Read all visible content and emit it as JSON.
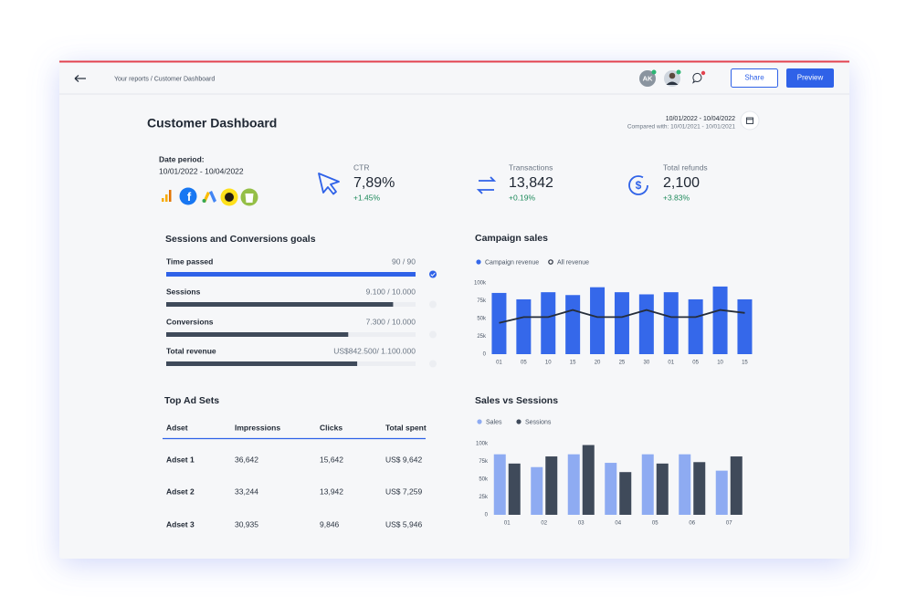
{
  "header": {
    "breadcrumb": "Your reports / Customer Dashboard",
    "avatar_initials": "AK",
    "share_button": "Share",
    "preview_button": "Preview"
  },
  "dashboard": {
    "title": "Customer Dashboard",
    "date_range": "10/01/2022 - 10/04/2022",
    "compared": "Compared with: 10/01/2021 - 10/01/2021"
  },
  "date_period": {
    "label": "Date period:",
    "value": "10/01/2022 - 10/04/2022"
  },
  "kpis": [
    {
      "label": "CTR",
      "value": "7,89%",
      "change": "+1.45%"
    },
    {
      "label": "Transactions",
      "value": "13,842",
      "change": "+0.19%"
    },
    {
      "label": "Total refunds",
      "value": "2,100",
      "change": "+3.83%"
    }
  ],
  "goals": {
    "title": "Sessions and Conversions goals",
    "items": [
      {
        "label": "Time passed",
        "value_label": "90 / 90",
        "value": 90,
        "target": 90
      },
      {
        "label": "Sessions",
        "value_label": "9.100 / 10.000",
        "value": 9100,
        "target": 10000
      },
      {
        "label": "Conversions",
        "value_label": "7.300 / 10.000",
        "value": 7300,
        "target": 10000
      },
      {
        "label": "Total revenue",
        "value_label": "US$842.500/ 1.100.000",
        "value": 842500,
        "target": 1100000
      }
    ]
  },
  "table": {
    "title": "Top Ad Sets",
    "columns": [
      "Adset",
      "Impressions",
      "Clicks",
      "Total spent"
    ],
    "rows": [
      [
        "Adset 1",
        "36,642",
        "15,642",
        "US$ 9,642"
      ],
      [
        "Adset 2",
        "33,244",
        "13,942",
        "US$ 7,259"
      ],
      [
        "Adset 3",
        "30,935",
        "9,846",
        "US$ 5,946"
      ]
    ]
  },
  "chart_data": [
    {
      "type": "combo",
      "title": "Campaign sales",
      "categories": [
        "01",
        "05",
        "10",
        "15",
        "20",
        "25",
        "30",
        "01",
        "05",
        "10",
        "15"
      ],
      "series": [
        {
          "name": "Campaign revenue",
          "type": "bar",
          "color": "#3568ea",
          "values": [
            86000,
            77000,
            87000,
            83000,
            94000,
            87000,
            84000,
            87000,
            77000,
            95000,
            77000
          ]
        },
        {
          "name": "All revenue",
          "type": "line",
          "color": "#252d3a",
          "values": [
            44000,
            52000,
            52000,
            62000,
            52000,
            52000,
            62000,
            52000,
            52000,
            62000,
            58000
          ]
        }
      ],
      "ylim": [
        0,
        100000
      ],
      "yticks": [
        0,
        {
          "value": 25000,
          "label": "25k"
        },
        {
          "value": 50000,
          "label": "50k"
        },
        {
          "value": 75000,
          "label": "75k"
        },
        {
          "value": 100000,
          "label": "100k"
        }
      ],
      "grid": false
    },
    {
      "type": "bar",
      "title": "Sales vs Sessions",
      "categories": [
        "01",
        "02",
        "03",
        "04",
        "05",
        "06",
        "07"
      ],
      "series": [
        {
          "name": "Sales",
          "color": "#8eabf2",
          "values": [
            85000,
            67000,
            85000,
            73000,
            85000,
            85000,
            62000
          ]
        },
        {
          "name": "Sessions",
          "color": "#3f4a5a",
          "values": [
            72000,
            82000,
            98000,
            60000,
            72000,
            74000,
            82000
          ]
        }
      ],
      "ylim": [
        0,
        100000
      ],
      "yticks": [
        0,
        {
          "value": 25000,
          "label": "25k"
        },
        {
          "value": 50000,
          "label": "50k"
        },
        {
          "value": 75000,
          "label": "75k"
        },
        {
          "value": 100000,
          "label": "100k"
        }
      ],
      "grid": false
    }
  ]
}
